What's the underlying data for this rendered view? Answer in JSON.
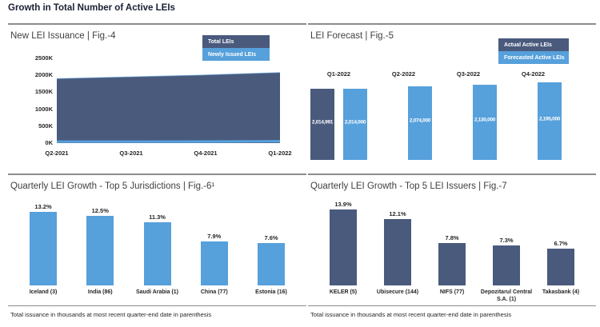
{
  "page_title": "Growth in Total Number of Active LEIs",
  "footnote": "Total issuance in thousands at most recent quarter-end date in parenthesis",
  "colors": {
    "dark_blue": "#4A5A7D",
    "light_blue": "#56A0DB",
    "rule_gray": "#8C8C8C"
  },
  "panels": {
    "issuance": {
      "title": "New LEI Issuance | Fig.-4",
      "legend": [
        "Total LEIs",
        "Newly Issued LEIs"
      ],
      "y_ticks": [
        "2500K",
        "2000K",
        "1500K",
        "1000K",
        "500K",
        "0K"
      ],
      "chart_data": {
        "type": "area",
        "x": [
          "Q2-2021",
          "Q3-2021",
          "Q4-2021",
          "Q1-2022"
        ],
        "series": [
          {
            "name": "Total LEIs",
            "values": [
              1900000,
              1955000,
              2010000,
              2080000
            ]
          },
          {
            "name": "Newly Issued LEIs",
            "values": [
              30000,
              35000,
              45000,
              55000
            ]
          }
        ],
        "ylim": [
          0,
          2500000
        ],
        "grid": false,
        "legend_position": "top-right"
      }
    },
    "forecast": {
      "title": "LEI Forecast | Fig.-5",
      "legend": [
        "Actual Active LEIs",
        "Forecasted Active LEIs"
      ],
      "chart_data": {
        "type": "bar",
        "categories": [
          "Q1-2022",
          "Q2-2022",
          "Q3-2022",
          "Q4-2022"
        ],
        "series": [
          {
            "name": "Actual Active LEIs",
            "values": [
              2014991
            ]
          },
          {
            "name": "Forecasted Active LEIs",
            "values": [
              2014000,
              2074000,
              2130000,
              2195000
            ]
          }
        ],
        "value_labels": [
          "2,014,991",
          "2,014,000",
          "2,074,000",
          "2,130,000",
          "2,195,000"
        ],
        "ymax": 2195000,
        "legend_position": "top-right"
      }
    },
    "jurisdictions": {
      "title": "Quarterly LEI Growth - Top 5 Jurisdictions | Fig.-6¹",
      "chart_data": {
        "type": "bar",
        "categories": [
          "Iceland (3)",
          "India (86)",
          "Saudi Arabia (1)",
          "China (77)",
          "Estonia (16)"
        ],
        "values": [
          13.2,
          12.5,
          11.3,
          7.9,
          7.6
        ],
        "value_labels": [
          "13.2%",
          "12.5%",
          "11.3%",
          "7.9%",
          "7.6%"
        ],
        "ymax": 13.2
      }
    },
    "issuers": {
      "title": "Quarterly LEI Growth - Top 5 LEI Issuers | Fig.-7",
      "chart_data": {
        "type": "bar",
        "categories": [
          "KELER (5)",
          "Ubisecure (144)",
          "NIFS (77)",
          "Depozitarul Central S.A. (1)",
          "Takasbank (4)"
        ],
        "values": [
          13.9,
          12.1,
          7.8,
          7.3,
          6.7
        ],
        "value_labels": [
          "13.9%",
          "12.1%",
          "7.8%",
          "7.3%",
          "6.7%"
        ],
        "ymax": 13.9
      }
    }
  }
}
